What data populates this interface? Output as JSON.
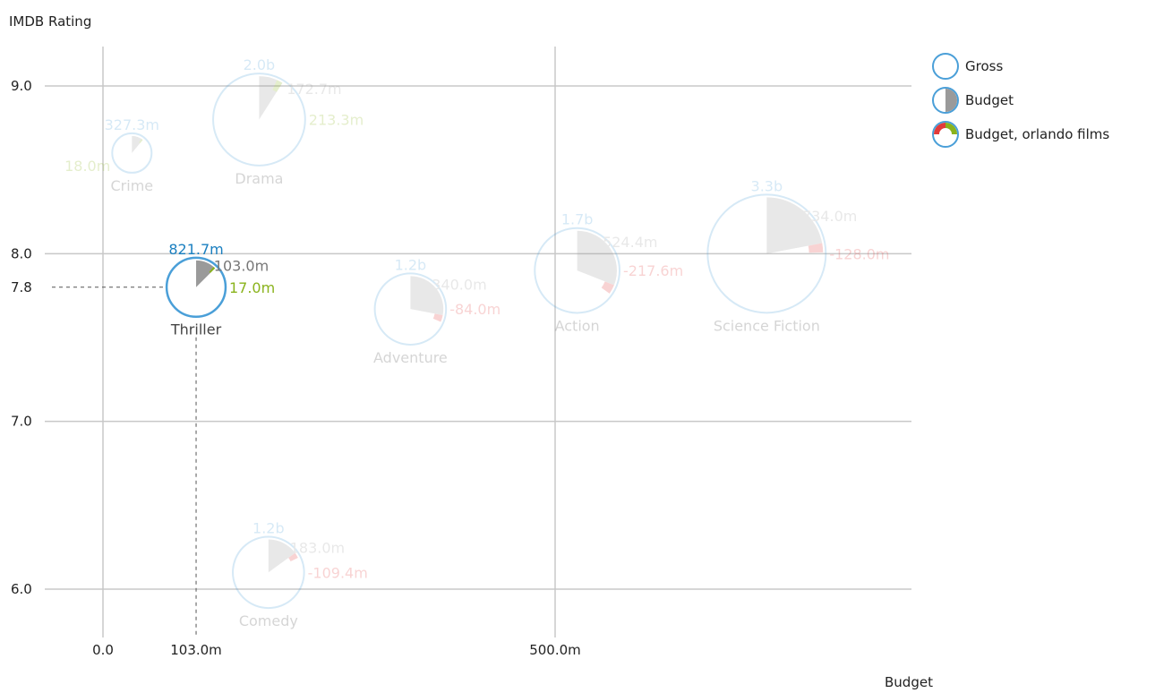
{
  "chart_data": {
    "type": "scatter",
    "subtype": "bubble-pie",
    "title": "",
    "ylabel": "IMDB Rating",
    "xlabel": "Budget",
    "xlim": [
      -30,
      790
    ],
    "ylim": [
      5.7,
      9.3
    ],
    "x_ticks": [
      {
        "value": 0,
        "label": "0.0"
      },
      {
        "value": 103,
        "label": "103.0m"
      },
      {
        "value": 500,
        "label": "500.0m"
      }
    ],
    "y_ticks": [
      {
        "value": 9.0,
        "label": "9.0"
      },
      {
        "value": 8.0,
        "label": "8.0"
      },
      {
        "value": 7.8,
        "label": "7.8"
      },
      {
        "value": 7.0,
        "label": "7.0"
      },
      {
        "value": 6.0,
        "label": "6.0"
      }
    ],
    "grid": true,
    "legend_position": "top-right",
    "selected_category": "Thriller",
    "colors": {
      "gross": "#4a9fd8",
      "budget": "#9a9a9a",
      "positive": "#8ab31c",
      "negative": "#e23b3b",
      "label": "#444444"
    },
    "series": [
      {
        "name": "Gross"
      },
      {
        "name": "Budget"
      },
      {
        "name": "Budget, orlando films"
      }
    ],
    "points": [
      {
        "category": "Crime",
        "budget": 32,
        "rating": 8.6,
        "gross": 327.3,
        "budget_of_gross": 0.11,
        "orlando_budget": 18.0,
        "gross_label": "327.3m",
        "budget_label": "",
        "orlando_label": "18.0m"
      },
      {
        "category": "Drama",
        "budget": 172.7,
        "rating": 8.8,
        "gross": 2000,
        "budget_of_gross": 0.09,
        "orlando_budget": 213.3,
        "gross_label": "2.0b",
        "budget_label": "172.7m",
        "orlando_label": "213.3m"
      },
      {
        "category": "Thriller",
        "budget": 103.0,
        "rating": 7.8,
        "gross": 821.7,
        "budget_of_gross": 0.125,
        "orlando_budget": 17.0,
        "gross_label": "821.7m",
        "budget_label": "103.0m",
        "orlando_label": "17.0m"
      },
      {
        "category": "Adventure",
        "budget": 340.0,
        "rating": 7.67,
        "gross": 1200,
        "budget_of_gross": 0.28,
        "orlando_budget": -84.0,
        "gross_label": "1.2b",
        "budget_label": "340.0m",
        "orlando_label": "-84.0m"
      },
      {
        "category": "Action",
        "budget": 524.4,
        "rating": 7.9,
        "gross": 1700,
        "budget_of_gross": 0.31,
        "orlando_budget": -217.6,
        "gross_label": "1.7b",
        "budget_label": "524.4m",
        "orlando_label": "-217.6m"
      },
      {
        "category": "Science Fiction",
        "budget": 734.0,
        "rating": 8.0,
        "gross": 3300,
        "budget_of_gross": 0.22,
        "orlando_budget": -128.0,
        "gross_label": "3.3b",
        "budget_label": "734.0m",
        "orlando_label": "-128.0m"
      },
      {
        "category": "Comedy",
        "budget": 183.0,
        "rating": 6.1,
        "gross": 1200,
        "budget_of_gross": 0.15,
        "orlando_budget": -109.4,
        "gross_label": "1.2b",
        "budget_label": "183.0m",
        "orlando_label": "-109.4m"
      }
    ]
  }
}
